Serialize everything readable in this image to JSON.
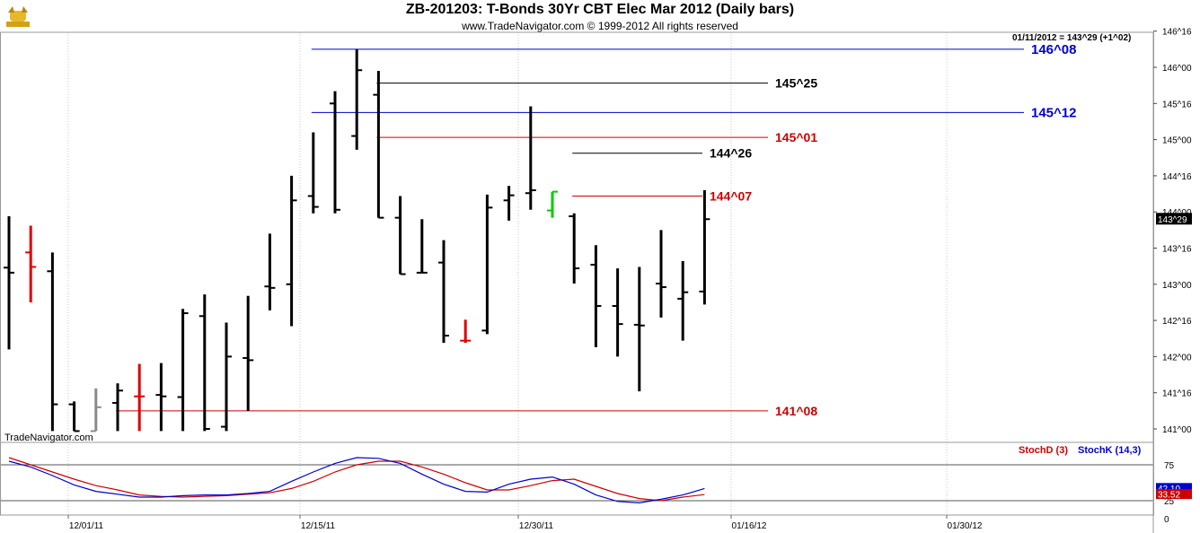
{
  "title": "ZB-201203:  T-Bonds 30Yr CBT Elec Mar 2012  (Daily bars)",
  "subtitle": "www.TradeNavigator.com © 1999-2012 All rights reserved",
  "watermark": "TradeNavigator.com",
  "readout": "01/11/2012 = 143^29 (+1^02)",
  "last_price_tag": "143^29",
  "colors": {
    "up_bar": "#e00000",
    "gray_bar": "#8a8a8a",
    "green_bar": "#00cc00",
    "blue_line": "#0000cc",
    "red_line": "#cc0000",
    "black_line": "#000000"
  },
  "indicator": {
    "stochd_label": "StochD (3)",
    "stochk_label": "StochK (14,3)",
    "stochd_value": "33.52",
    "stochk_value": "42.10",
    "ticks": [
      "75",
      "25",
      "0"
    ],
    "levels": [
      75,
      25
    ]
  },
  "chart_data": {
    "type": "ohlc",
    "title": "ZB-201203:  T-Bonds 30Yr CBT Elec Mar 2012  (Daily bars)",
    "unit": "points (32nds)",
    "y_ticks": [
      "146^16",
      "146^00",
      "145^16",
      "145^00",
      "144^16",
      "144^00",
      "143^16",
      "143^00",
      "142^16",
      "142^00",
      "141^16",
      "141^00"
    ],
    "ylim": [
      140.97,
      146.5
    ],
    "x_ticks": [
      "12/01/11",
      "12/15/11",
      "12/30/11",
      "01/16/12",
      "01/30/12"
    ],
    "bars": [
      {
        "o": 143.23,
        "h": 143.94,
        "l": 142.1,
        "c": 143.16,
        "color": "black"
      },
      {
        "o": 143.44,
        "h": 143.81,
        "l": 142.75,
        "c": 143.24,
        "color": "red"
      },
      {
        "o": 143.18,
        "h": 143.44,
        "l": 140.97,
        "c": 141.34,
        "color": "black"
      },
      {
        "o": 141.34,
        "h": 141.38,
        "l": 140.97,
        "c": 140.97,
        "color": "black"
      },
      {
        "o": 140.97,
        "h": 141.56,
        "l": 140.97,
        "c": 141.3,
        "color": "gray"
      },
      {
        "o": 141.36,
        "h": 141.63,
        "l": 140.97,
        "c": 141.53,
        "color": "black"
      },
      {
        "o": 141.45,
        "h": 141.9,
        "l": 140.97,
        "c": 141.45,
        "color": "red"
      },
      {
        "o": 141.47,
        "h": 141.91,
        "l": 140.97,
        "c": 141.45,
        "color": "black"
      },
      {
        "o": 141.44,
        "h": 142.66,
        "l": 140.97,
        "c": 142.6,
        "color": "black"
      },
      {
        "o": 142.56,
        "h": 142.86,
        "l": 140.97,
        "c": 141.0,
        "color": "black"
      },
      {
        "o": 141.03,
        "h": 142.47,
        "l": 140.97,
        "c": 142.0,
        "color": "black"
      },
      {
        "o": 141.98,
        "h": 142.84,
        "l": 141.25,
        "c": 141.95,
        "color": "black"
      },
      {
        "o": 142.97,
        "h": 143.7,
        "l": 142.64,
        "c": 142.95,
        "color": "black"
      },
      {
        "o": 143.0,
        "h": 144.5,
        "l": 142.42,
        "c": 144.16,
        "color": "black"
      },
      {
        "o": 144.22,
        "h": 145.1,
        "l": 143.98,
        "c": 144.07,
        "color": "black"
      },
      {
        "o": 145.5,
        "h": 145.67,
        "l": 143.98,
        "c": 144.03,
        "color": "black"
      },
      {
        "o": 145.05,
        "h": 146.25,
        "l": 144.86,
        "c": 145.96,
        "color": "black"
      },
      {
        "o": 145.62,
        "h": 145.95,
        "l": 143.95,
        "c": 143.92,
        "color": "black"
      },
      {
        "o": 143.92,
        "h": 144.22,
        "l": 143.17,
        "c": 143.14,
        "color": "black"
      },
      {
        "o": 143.16,
        "h": 143.9,
        "l": 143.17,
        "c": 143.16,
        "color": "black"
      },
      {
        "o": 143.3,
        "h": 143.61,
        "l": 142.19,
        "c": 142.29,
        "color": "black"
      },
      {
        "o": 142.22,
        "h": 142.51,
        "l": 142.19,
        "c": 142.22,
        "color": "red"
      },
      {
        "o": 142.36,
        "h": 144.24,
        "l": 142.31,
        "c": 144.06,
        "color": "black"
      },
      {
        "o": 144.16,
        "h": 144.36,
        "l": 143.88,
        "c": 144.23,
        "color": "black"
      },
      {
        "o": 144.26,
        "h": 145.46,
        "l": 144.03,
        "c": 144.3,
        "color": "black"
      },
      {
        "o": 144.02,
        "h": 144.28,
        "l": 143.92,
        "c": 144.28,
        "color": "green"
      },
      {
        "o": 143.94,
        "h": 143.98,
        "l": 143.01,
        "c": 143.22,
        "color": "black"
      },
      {
        "o": 143.27,
        "h": 143.54,
        "l": 142.13,
        "c": 142.7,
        "color": "black"
      },
      {
        "o": 142.7,
        "h": 143.22,
        "l": 142.0,
        "c": 142.45,
        "color": "black"
      },
      {
        "o": 142.44,
        "h": 143.24,
        "l": 141.52,
        "c": 142.43,
        "color": "black"
      },
      {
        "o": 143.01,
        "h": 143.75,
        "l": 142.54,
        "c": 142.96,
        "color": "black"
      },
      {
        "o": 142.8,
        "h": 143.32,
        "l": 142.22,
        "c": 142.89,
        "color": "black"
      },
      {
        "o": 142.9,
        "h": 144.3,
        "l": 142.72,
        "c": 143.9,
        "color": "black"
      }
    ],
    "levels": [
      {
        "label": "146^08",
        "value": 146.25,
        "color": "blue",
        "from_bar": 14
      },
      {
        "label": "145^25",
        "value": 145.781,
        "color": "black",
        "from_bar": 17
      },
      {
        "label": "145^12",
        "value": 145.375,
        "color": "blue",
        "from_bar": 14
      },
      {
        "label": "145^01",
        "value": 145.031,
        "color": "red",
        "from_bar": 17
      },
      {
        "label": "144^26",
        "value": 144.8125,
        "color": "black",
        "from_bar": 26
      },
      {
        "label": "144^07",
        "value": 144.219,
        "color": "red",
        "from_bar": 26
      },
      {
        "label": "141^08",
        "value": 141.25,
        "color": "red",
        "from_bar": 5
      }
    ],
    "stoch_k": [
      80,
      72,
      60,
      47,
      38,
      34,
      30,
      30,
      32,
      33,
      33,
      35,
      38,
      52,
      65,
      77,
      85,
      84,
      77,
      62,
      48,
      38,
      37,
      48,
      55,
      58,
      48,
      33,
      24,
      22,
      27,
      33,
      42
    ],
    "stoch_d": [
      85,
      75,
      65,
      55,
      46,
      40,
      33,
      31,
      30,
      31,
      32,
      34,
      36,
      42,
      52,
      65,
      75,
      80,
      80,
      72,
      62,
      50,
      40,
      40,
      46,
      53,
      55,
      45,
      35,
      28,
      25,
      30,
      33.52
    ]
  }
}
